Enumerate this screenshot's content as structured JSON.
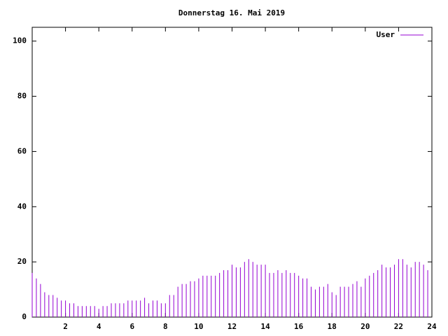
{
  "chart_data": {
    "type": "impulses",
    "title": "Donnerstag 16. Mai 2019",
    "x": [
      0,
      0.25,
      0.5,
      0.75,
      1,
      1.25,
      1.5,
      1.75,
      2,
      2.25,
      2.5,
      2.75,
      3,
      3.25,
      3.5,
      3.75,
      4,
      4.25,
      4.5,
      4.75,
      5,
      5.25,
      5.5,
      5.75,
      6,
      6.25,
      6.5,
      6.75,
      7,
      7.25,
      7.5,
      7.75,
      8,
      8.25,
      8.5,
      8.75,
      9,
      9.25,
      9.5,
      9.75,
      10,
      10.25,
      10.5,
      10.75,
      11,
      11.25,
      11.5,
      11.75,
      12,
      12.25,
      12.5,
      12.75,
      13,
      13.25,
      13.5,
      13.75,
      14,
      14.25,
      14.5,
      14.75,
      15,
      15.25,
      15.5,
      15.75,
      16,
      16.25,
      16.5,
      16.75,
      17,
      17.25,
      17.5,
      17.75,
      18,
      18.25,
      18.5,
      18.75,
      19,
      19.25,
      19.5,
      19.75,
      20,
      20.25,
      20.5,
      20.75,
      21,
      21.25,
      21.5,
      21.75,
      22,
      22.25,
      22.5,
      22.75,
      23,
      23.25,
      23.5,
      23.75
    ],
    "series": [
      {
        "name": "User",
        "color": "#9400d3",
        "values": [
          16,
          14,
          12,
          9,
          8,
          8,
          7,
          6,
          6,
          5,
          5,
          4,
          4,
          4,
          4,
          4,
          3,
          4,
          4,
          5,
          5,
          5,
          5,
          6,
          6,
          6,
          6,
          7,
          5,
          6,
          6,
          5,
          5,
          8,
          8,
          11,
          12,
          12,
          13,
          13,
          14,
          15,
          15,
          15,
          15,
          16,
          17,
          17,
          19,
          18,
          18,
          20,
          21,
          20,
          19,
          19,
          19,
          16,
          16,
          17,
          16,
          17,
          16,
          16,
          15,
          14,
          14,
          11,
          10,
          11,
          11,
          12,
          9,
          8,
          11,
          11,
          11,
          12,
          13,
          11,
          14,
          15,
          16,
          17,
          19,
          18,
          18,
          19,
          21,
          21,
          19,
          18,
          20,
          20,
          19,
          17
        ]
      }
    ],
    "xlim": [
      0,
      24
    ],
    "xticks": [
      2,
      4,
      6,
      8,
      10,
      12,
      14,
      16,
      18,
      20,
      22,
      24
    ],
    "ylim": [
      0,
      105
    ],
    "yticks": [
      0,
      20,
      40,
      60,
      80,
      100
    ],
    "legend": "top-right"
  }
}
